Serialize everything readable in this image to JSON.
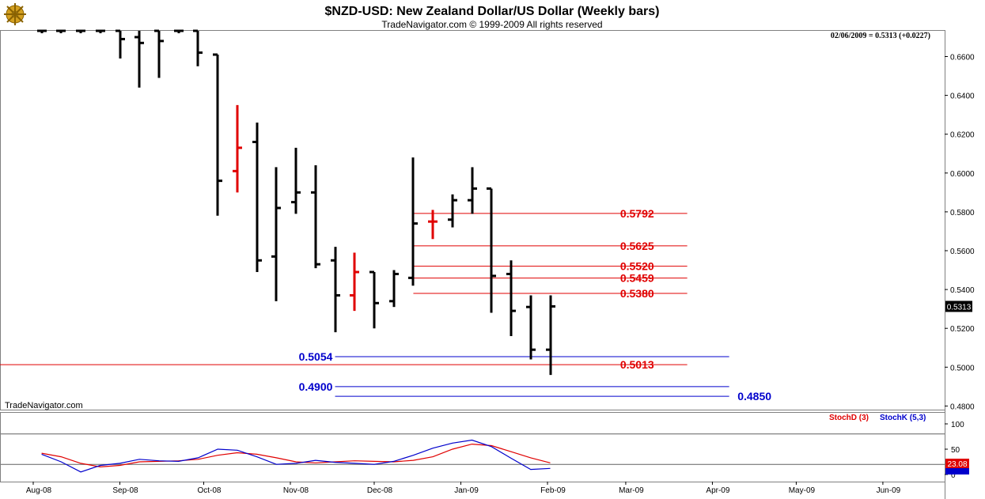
{
  "title": "$NZD-USD:  New Zealand Dollar/US Dollar  (Weekly bars)",
  "subtitle": "TradeNavigator.com © 1999-2009 All rights reserved",
  "readout": "02/06/2009 = 0.5313 (+0.0227)",
  "watermark": "TradeNavigator.com",
  "logo_icon": "ship-wheel-logo-icon",
  "colors": {
    "up_bar": "#000000",
    "highlight_bar": "#e00000",
    "resistance": "#e00000",
    "support": "#0000cc",
    "stoch_d": "#e00000",
    "stoch_k": "#0000cc",
    "grid": "#000000"
  },
  "chart_data": [
    {
      "type": "ohlc",
      "title": "$NZD-USD:  New Zealand Dollar/US Dollar  (Weekly bars)",
      "ylim": [
        0.475,
        0.67
      ],
      "yticks": [
        "0.6600",
        "0.6400",
        "0.6200",
        "0.6000",
        "0.5800",
        "0.5600",
        "0.5400",
        "0.5200",
        "0.5000",
        "0.4800"
      ],
      "xticks": [
        "Aug-08",
        "Sep-08",
        "Oct-08",
        "Nov-08",
        "Dec-08",
        "Jan-09",
        "Feb-09",
        "Mar-09",
        "Apr-09",
        "May-09",
        "Jun-09"
      ],
      "last_price": "0.5313",
      "bars": [
        {
          "date": "2008-08-04",
          "o": 0.675,
          "h": 0.679,
          "l": 0.672,
          "c": 0.674,
          "color": "black"
        },
        {
          "date": "2008-08-11",
          "o": 0.6745,
          "h": 0.678,
          "l": 0.672,
          "c": 0.674,
          "color": "black"
        },
        {
          "date": "2008-08-18",
          "o": 0.6745,
          "h": 0.678,
          "l": 0.672,
          "c": 0.674,
          "color": "black"
        },
        {
          "date": "2008-08-25",
          "o": 0.6745,
          "h": 0.678,
          "l": 0.672,
          "c": 0.674,
          "color": "black"
        },
        {
          "date": "2008-09-01",
          "o": 0.674,
          "h": 0.674,
          "l": 0.659,
          "c": 0.669,
          "color": "black"
        },
        {
          "date": "2008-09-08",
          "o": 0.67,
          "h": 0.674,
          "l": 0.644,
          "c": 0.667,
          "color": "black"
        },
        {
          "date": "2008-09-15",
          "o": 0.674,
          "h": 0.674,
          "l": 0.649,
          "c": 0.668,
          "color": "black"
        },
        {
          "date": "2008-09-22",
          "o": 0.674,
          "h": 0.676,
          "l": 0.672,
          "c": 0.674,
          "color": "black"
        },
        {
          "date": "2008-09-29",
          "o": 0.674,
          "h": 0.674,
          "l": 0.655,
          "c": 0.662,
          "color": "black"
        },
        {
          "date": "2008-10-06",
          "o": 0.661,
          "h": 0.661,
          "l": 0.578,
          "c": 0.596,
          "color": "black"
        },
        {
          "date": "2008-10-13",
          "o": 0.601,
          "h": 0.635,
          "l": 0.59,
          "c": 0.613,
          "color": "red"
        },
        {
          "date": "2008-10-20",
          "o": 0.616,
          "h": 0.626,
          "l": 0.549,
          "c": 0.555,
          "color": "black"
        },
        {
          "date": "2008-10-27",
          "o": 0.557,
          "h": 0.603,
          "l": 0.534,
          "c": 0.582,
          "color": "black"
        },
        {
          "date": "2008-11-03",
          "o": 0.585,
          "h": 0.613,
          "l": 0.579,
          "c": 0.59,
          "color": "black"
        },
        {
          "date": "2008-11-10",
          "o": 0.59,
          "h": 0.604,
          "l": 0.551,
          "c": 0.553,
          "color": "black"
        },
        {
          "date": "2008-11-17",
          "o": 0.555,
          "h": 0.562,
          "l": 0.518,
          "c": 0.537,
          "color": "black"
        },
        {
          "date": "2008-11-24",
          "o": 0.537,
          "h": 0.559,
          "l": 0.529,
          "c": 0.549,
          "color": "red"
        },
        {
          "date": "2008-12-01",
          "o": 0.549,
          "h": 0.549,
          "l": 0.52,
          "c": 0.533,
          "color": "black"
        },
        {
          "date": "2008-12-08",
          "o": 0.534,
          "h": 0.55,
          "l": 0.531,
          "c": 0.548,
          "color": "black"
        },
        {
          "date": "2008-12-15",
          "o": 0.546,
          "h": 0.608,
          "l": 0.542,
          "c": 0.574,
          "color": "black"
        },
        {
          "date": "2008-12-22",
          "o": 0.575,
          "h": 0.581,
          "l": 0.566,
          "c": 0.575,
          "color": "red"
        },
        {
          "date": "2008-12-29",
          "o": 0.576,
          "h": 0.589,
          "l": 0.572,
          "c": 0.586,
          "color": "black"
        },
        {
          "date": "2009-01-05",
          "o": 0.586,
          "h": 0.603,
          "l": 0.579,
          "c": 0.592,
          "color": "black"
        },
        {
          "date": "2009-01-12",
          "o": 0.592,
          "h": 0.592,
          "l": 0.528,
          "c": 0.547,
          "color": "black"
        },
        {
          "date": "2009-01-19",
          "o": 0.548,
          "h": 0.555,
          "l": 0.516,
          "c": 0.529,
          "color": "black"
        },
        {
          "date": "2009-01-26",
          "o": 0.531,
          "h": 0.537,
          "l": 0.504,
          "c": 0.509,
          "color": "black"
        },
        {
          "date": "2009-02-02",
          "o": 0.509,
          "h": 0.537,
          "l": 0.496,
          "c": 0.5313,
          "color": "black"
        }
      ],
      "levels": [
        {
          "value": 0.5792,
          "label": "0.5792",
          "color": "red",
          "from": "2008-12-15",
          "to": "2009-03-23",
          "label_at": "2009-02-27"
        },
        {
          "value": 0.5625,
          "label": "0.5625",
          "color": "red",
          "from": "2008-12-15",
          "to": "2009-03-23",
          "label_at": "2009-02-27"
        },
        {
          "value": 0.552,
          "label": "0.5520",
          "color": "red",
          "from": "2008-12-15",
          "to": "2009-03-23",
          "label_at": "2009-02-27"
        },
        {
          "value": 0.5459,
          "label": "0.5459",
          "color": "red",
          "from": "2008-12-15",
          "to": "2009-03-23",
          "label_at": "2009-02-27"
        },
        {
          "value": 0.538,
          "label": "0.5380",
          "color": "red",
          "from": "2008-12-15",
          "to": "2009-03-23",
          "label_at": "2009-02-27"
        },
        {
          "value": 0.5013,
          "label": "0.5013",
          "color": "red",
          "from": "2008-06-15",
          "to": "2009-03-23",
          "label_at": "2009-02-27"
        },
        {
          "value": 0.5054,
          "label": "0.5054",
          "color": "blue",
          "from": "2008-11-17",
          "to": "2009-04-07",
          "label_at": "2008-11-04"
        },
        {
          "value": 0.49,
          "label": "0.4900",
          "color": "blue",
          "from": "2008-11-17",
          "to": "2009-04-07",
          "label_at": "2008-11-04"
        },
        {
          "value": 0.485,
          "label": "0.4850",
          "color": "blue",
          "from": "2008-11-17",
          "to": "2009-04-07",
          "label_at": "2009-04-10"
        }
      ]
    },
    {
      "type": "line",
      "ylim": [
        0,
        100
      ],
      "yticks": [
        "100",
        "50",
        "0"
      ],
      "reference_lines": [
        80,
        20
      ],
      "last_values": [
        "23.08"
      ],
      "series": [
        {
          "name": "StochD (3)",
          "color": "red",
          "x": [
            "2008-08-04",
            "2008-08-11",
            "2008-08-18",
            "2008-08-25",
            "2008-09-01",
            "2008-09-08",
            "2008-09-15",
            "2008-09-22",
            "2008-09-29",
            "2008-10-06",
            "2008-10-13",
            "2008-10-20",
            "2008-10-27",
            "2008-11-03",
            "2008-11-10",
            "2008-11-17",
            "2008-11-24",
            "2008-12-01",
            "2008-12-08",
            "2008-12-15",
            "2008-12-22",
            "2008-12-29",
            "2009-01-05",
            "2009-01-12",
            "2009-01-19",
            "2009-01-26",
            "2009-02-02"
          ],
          "values": [
            42,
            35,
            22,
            15,
            18,
            25,
            26,
            27,
            30,
            38,
            43,
            40,
            33,
            25,
            23,
            25,
            27,
            26,
            25,
            28,
            35,
            50,
            60,
            57,
            45,
            33,
            23
          ]
        },
        {
          "name": "StochK (5,3)",
          "color": "blue",
          "x": [
            "2008-08-04",
            "2008-08-11",
            "2008-08-18",
            "2008-08-25",
            "2008-09-01",
            "2008-09-08",
            "2008-09-15",
            "2008-09-22",
            "2008-09-29",
            "2008-10-06",
            "2008-10-13",
            "2008-10-20",
            "2008-10-27",
            "2008-11-03",
            "2008-11-10",
            "2008-11-17",
            "2008-11-24",
            "2008-12-01",
            "2008-12-08",
            "2008-12-15",
            "2008-12-22",
            "2008-12-29",
            "2009-01-05",
            "2009-01-12",
            "2009-01-19",
            "2009-01-26",
            "2009-02-02"
          ],
          "values": [
            40,
            25,
            5,
            18,
            22,
            30,
            27,
            26,
            33,
            50,
            48,
            35,
            20,
            22,
            28,
            24,
            22,
            20,
            26,
            38,
            52,
            62,
            68,
            55,
            32,
            10,
            12
          ]
        }
      ]
    }
  ]
}
